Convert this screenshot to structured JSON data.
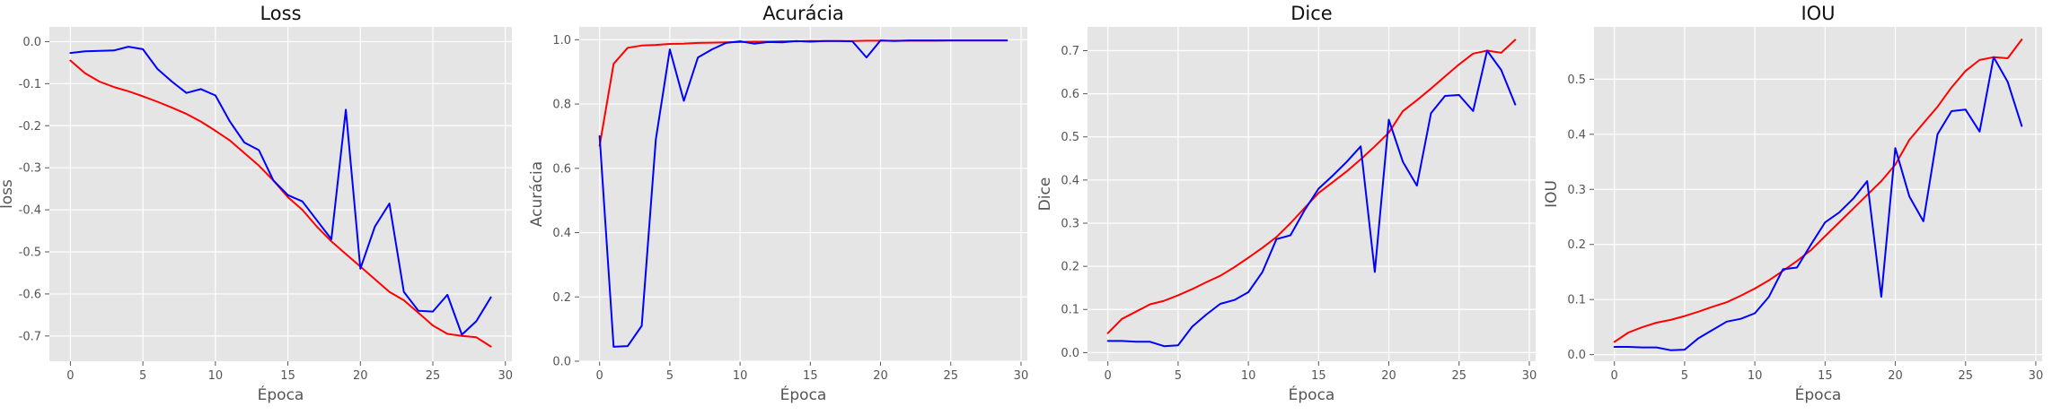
{
  "chart_data": [
    {
      "type": "line",
      "title": "Loss",
      "xlabel": "Época",
      "ylabel": "loss",
      "xlim": [
        -1.45,
        30.45
      ],
      "ylim": [
        -0.76,
        0.035
      ],
      "xticks": [
        0,
        5,
        10,
        15,
        20,
        25,
        30
      ],
      "yticks": [
        0.0,
        -0.1,
        -0.2,
        -0.3,
        -0.4,
        -0.5,
        -0.6,
        -0.7
      ],
      "ytick_decimals": 1,
      "grid": true,
      "x": [
        0,
        1,
        2,
        3,
        4,
        5,
        6,
        7,
        8,
        9,
        10,
        11,
        12,
        13,
        14,
        15,
        16,
        17,
        18,
        19,
        20,
        21,
        22,
        23,
        24,
        25,
        26,
        27,
        28,
        29
      ],
      "series": [
        {
          "color": "#ff0000",
          "values": [
            -0.045,
            -0.075,
            -0.095,
            -0.108,
            -0.118,
            -0.13,
            -0.143,
            -0.157,
            -0.172,
            -0.19,
            -0.212,
            -0.235,
            -0.265,
            -0.295,
            -0.33,
            -0.37,
            -0.4,
            -0.44,
            -0.475,
            -0.505,
            -0.535,
            -0.565,
            -0.595,
            -0.615,
            -0.645,
            -0.675,
            -0.695,
            -0.7,
            -0.703,
            -0.725
          ]
        },
        {
          "color": "#0000ff",
          "values": [
            -0.027,
            -0.023,
            -0.022,
            -0.021,
            -0.012,
            -0.018,
            -0.065,
            -0.095,
            -0.122,
            -0.113,
            -0.128,
            -0.19,
            -0.24,
            -0.258,
            -0.33,
            -0.365,
            -0.38,
            -0.425,
            -0.47,
            -0.162,
            -0.54,
            -0.44,
            -0.385,
            -0.595,
            -0.64,
            -0.642,
            -0.602,
            -0.697,
            -0.665,
            -0.608
          ]
        }
      ]
    },
    {
      "type": "line",
      "title": "Acurácia",
      "xlabel": "Época",
      "ylabel": "Acurácia",
      "xlim": [
        -1.45,
        30.45
      ],
      "ylim": [
        0.0,
        1.04
      ],
      "xticks": [
        0,
        5,
        10,
        15,
        20,
        25,
        30
      ],
      "yticks": [
        0.0,
        0.2,
        0.4,
        0.6,
        0.8,
        1.0
      ],
      "ytick_decimals": 1,
      "grid": true,
      "x": [
        0,
        1,
        2,
        3,
        4,
        5,
        6,
        7,
        8,
        9,
        10,
        11,
        12,
        13,
        14,
        15,
        16,
        17,
        18,
        19,
        20,
        21,
        22,
        23,
        24,
        25,
        26,
        27,
        28,
        29
      ],
      "series": [
        {
          "color": "#ff0000",
          "values": [
            0.67,
            0.925,
            0.975,
            0.982,
            0.984,
            0.987,
            0.988,
            0.99,
            0.991,
            0.992,
            0.993,
            0.994,
            0.994,
            0.995,
            0.995,
            0.996,
            0.996,
            0.996,
            0.996,
            0.997,
            0.997,
            0.997,
            0.997,
            0.997,
            0.997,
            0.998,
            0.998,
            0.998,
            0.998,
            0.998
          ]
        },
        {
          "color": "#0000ff",
          "values": [
            0.7,
            0.045,
            0.047,
            0.11,
            0.69,
            0.97,
            0.81,
            0.945,
            0.97,
            0.99,
            0.995,
            0.988,
            0.993,
            0.992,
            0.996,
            0.994,
            0.996,
            0.996,
            0.995,
            0.945,
            0.998,
            0.996,
            0.998,
            0.998,
            0.998,
            0.998,
            0.998,
            0.998,
            0.998,
            0.998
          ]
        }
      ]
    },
    {
      "type": "line",
      "title": "Dice",
      "xlabel": "Época",
      "ylabel": "Dice",
      "xlim": [
        -1.45,
        30.45
      ],
      "ylim": [
        -0.02,
        0.755
      ],
      "xticks": [
        0,
        5,
        10,
        15,
        20,
        25,
        30
      ],
      "yticks": [
        0.0,
        0.1,
        0.2,
        0.3,
        0.4,
        0.5,
        0.6,
        0.7
      ],
      "ytick_decimals": 1,
      "grid": true,
      "x": [
        0,
        1,
        2,
        3,
        4,
        5,
        6,
        7,
        8,
        9,
        10,
        11,
        12,
        13,
        14,
        15,
        16,
        17,
        18,
        19,
        20,
        21,
        22,
        23,
        24,
        25,
        26,
        27,
        28,
        29
      ],
      "series": [
        {
          "color": "#ff0000",
          "values": [
            0.045,
            0.078,
            0.095,
            0.112,
            0.12,
            0.133,
            0.147,
            0.163,
            0.178,
            0.198,
            0.22,
            0.243,
            0.268,
            0.3,
            0.335,
            0.37,
            0.395,
            0.42,
            0.448,
            0.478,
            0.51,
            0.56,
            0.585,
            0.612,
            0.64,
            0.668,
            0.693,
            0.7,
            0.695,
            0.725
          ]
        },
        {
          "color": "#0000ff",
          "values": [
            0.027,
            0.027,
            0.025,
            0.025,
            0.015,
            0.017,
            0.06,
            0.088,
            0.113,
            0.122,
            0.14,
            0.187,
            0.263,
            0.272,
            0.33,
            0.38,
            0.41,
            0.442,
            0.478,
            0.187,
            0.54,
            0.442,
            0.387,
            0.555,
            0.595,
            0.597,
            0.56,
            0.7,
            0.655,
            0.575
          ]
        }
      ]
    },
    {
      "type": "line",
      "title": "IOU",
      "xlabel": "Época",
      "ylabel": "IOU",
      "xlim": [
        -1.45,
        30.45
      ],
      "ylim": [
        -0.012,
        0.595
      ],
      "xticks": [
        0,
        5,
        10,
        15,
        20,
        25,
        30
      ],
      "yticks": [
        0.0,
        0.1,
        0.2,
        0.3,
        0.4,
        0.5
      ],
      "ytick_decimals": 1,
      "grid": true,
      "x": [
        0,
        1,
        2,
        3,
        4,
        5,
        6,
        7,
        8,
        9,
        10,
        11,
        12,
        13,
        14,
        15,
        16,
        17,
        18,
        19,
        20,
        21,
        22,
        23,
        24,
        25,
        26,
        27,
        28,
        29
      ],
      "series": [
        {
          "color": "#ff0000",
          "values": [
            0.023,
            0.04,
            0.05,
            0.058,
            0.063,
            0.07,
            0.078,
            0.087,
            0.095,
            0.107,
            0.12,
            0.135,
            0.152,
            0.17,
            0.19,
            0.215,
            0.24,
            0.265,
            0.29,
            0.315,
            0.345,
            0.39,
            0.42,
            0.45,
            0.485,
            0.515,
            0.535,
            0.54,
            0.538,
            0.572
          ]
        },
        {
          "color": "#0000ff",
          "values": [
            0.014,
            0.014,
            0.013,
            0.013,
            0.008,
            0.009,
            0.03,
            0.045,
            0.06,
            0.065,
            0.075,
            0.105,
            0.155,
            0.158,
            0.2,
            0.24,
            0.258,
            0.283,
            0.315,
            0.105,
            0.375,
            0.287,
            0.242,
            0.4,
            0.442,
            0.445,
            0.405,
            0.54,
            0.495,
            0.415
          ]
        }
      ]
    }
  ]
}
